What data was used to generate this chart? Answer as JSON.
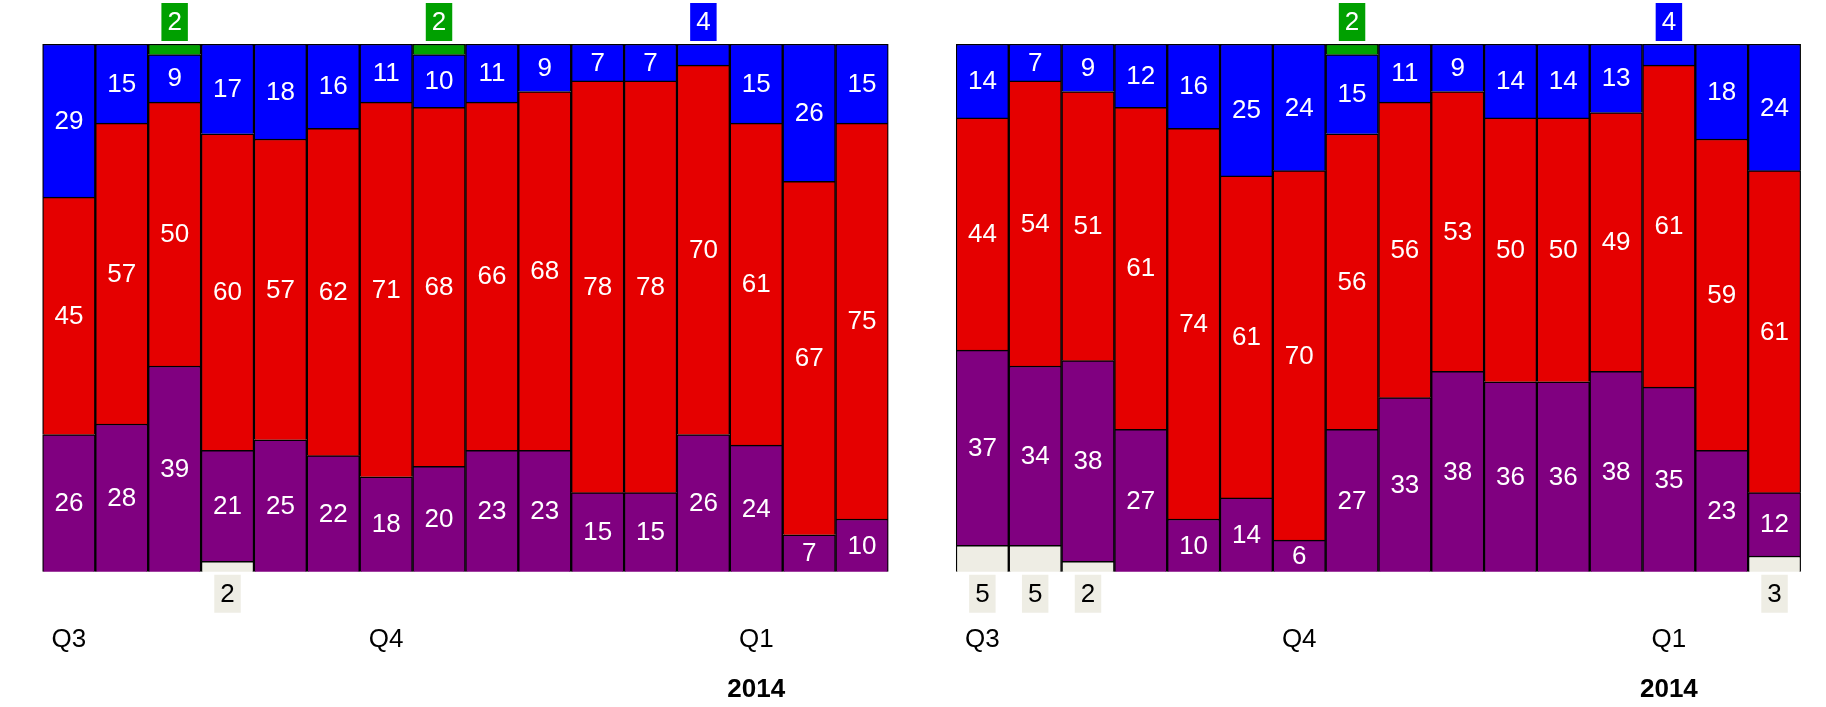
{
  "chart_data": [
    {
      "type": "bar",
      "stacked": true,
      "data_labels": true,
      "legend": false,
      "grid": false,
      "categories": [
        "Q3",
        null,
        null,
        null,
        null,
        null,
        "Q4",
        null,
        null,
        null,
        null,
        null,
        null,
        "Q1",
        null,
        null
      ],
      "annotations": [
        "2014"
      ],
      "series": [
        {
          "color": "#eeede4",
          "values": [
            null,
            null,
            null,
            2,
            null,
            null,
            null,
            null,
            null,
            null,
            null,
            null,
            null,
            null,
            null,
            null
          ]
        },
        {
          "color": "#800080",
          "values": [
            26,
            28,
            39,
            21,
            25,
            22,
            18,
            20,
            23,
            23,
            15,
            15,
            26,
            24,
            7,
            10
          ]
        },
        {
          "color": "#e50000",
          "values": [
            45,
            57,
            50,
            60,
            57,
            62,
            71,
            68,
            66,
            68,
            78,
            78,
            70,
            61,
            67,
            75
          ]
        },
        {
          "color": "#0000ff",
          "values": [
            29,
            15,
            9,
            17,
            18,
            16,
            11,
            10,
            11,
            9,
            7,
            7,
            4,
            15,
            26,
            15
          ]
        },
        {
          "color": "#00a000",
          "values": [
            null,
            null,
            2,
            null,
            null,
            null,
            null,
            2,
            null,
            null,
            null,
            null,
            null,
            null,
            null,
            null
          ]
        }
      ]
    },
    {
      "type": "bar",
      "stacked": true,
      "data_labels": true,
      "legend": false,
      "grid": false,
      "categories": [
        "Q3",
        null,
        null,
        null,
        null,
        null,
        "Q4",
        null,
        null,
        null,
        null,
        null,
        null,
        "Q1",
        null,
        null
      ],
      "annotations": [
        "2014"
      ],
      "series": [
        {
          "color": "#eeede4",
          "values": [
            5,
            5,
            2,
            null,
            null,
            null,
            null,
            null,
            null,
            null,
            null,
            null,
            null,
            null,
            null,
            3
          ]
        },
        {
          "color": "#800080",
          "values": [
            37,
            34,
            38,
            27,
            10,
            14,
            6,
            27,
            33,
            38,
            36,
            36,
            38,
            35,
            23,
            12
          ]
        },
        {
          "color": "#e50000",
          "values": [
            44,
            54,
            51,
            61,
            74,
            61,
            70,
            56,
            56,
            53,
            50,
            50,
            49,
            61,
            59,
            61
          ]
        },
        {
          "color": "#0000ff",
          "values": [
            14,
            7,
            9,
            12,
            16,
            25,
            24,
            15,
            11,
            9,
            14,
            14,
            13,
            4,
            18,
            24
          ]
        },
        {
          "color": "#00a000",
          "values": [
            null,
            null,
            null,
            null,
            null,
            null,
            null,
            2,
            null,
            null,
            null,
            null,
            null,
            null,
            null,
            null
          ]
        }
      ]
    }
  ]
}
